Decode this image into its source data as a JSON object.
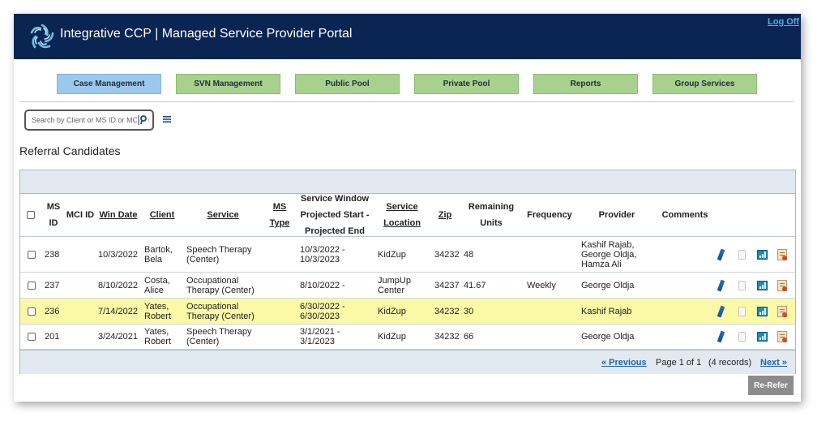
{
  "header": {
    "title": "Integrative CCP | Managed Service Provider Portal",
    "logoff_label": "Log Off"
  },
  "nav": {
    "buttons": [
      {
        "label": "Case Management",
        "active": true
      },
      {
        "label": "SVN Management",
        "active": false
      },
      {
        "label": "Public Pool",
        "active": false
      },
      {
        "label": "Private Pool",
        "active": false
      },
      {
        "label": "Reports",
        "active": false
      },
      {
        "label": "Group Services",
        "active": false
      }
    ]
  },
  "search": {
    "placeholder": "Search by Client or MS ID or MCI ID"
  },
  "page": {
    "title": "Referral Candidates"
  },
  "table": {
    "headers": {
      "ms_id": "MS ID",
      "mci_id": "MCI ID",
      "win_date": "Win Date",
      "client": "Client",
      "service": "Service",
      "ms_type": "MS Type",
      "window": "Service Window Projected Start - Projected End",
      "location": "Service Location",
      "zip": "Zip",
      "remaining": "Remaining Units",
      "frequency": "Frequency",
      "provider": "Provider",
      "comments": "Comments"
    },
    "rows": [
      {
        "ms_id": "238",
        "mci_id": "",
        "win_date": "10/3/2022",
        "client": "Bartok, Bela",
        "service": "Speech Therapy (Center)",
        "ms_type": "",
        "window": "10/3/2022 - 10/3/2023",
        "location": "KidZup",
        "zip": "34232",
        "remaining": "48",
        "frequency": "",
        "provider": "Kashif Rajab, George Oldja, Hamza Ali",
        "comments": "",
        "highlighted": false
      },
      {
        "ms_id": "237",
        "mci_id": "",
        "win_date": "8/10/2022",
        "client": "Costa, Alice",
        "service": "Occupational Therapy (Center)",
        "ms_type": "",
        "window": "8/10/2022 -",
        "location": "JumpUp Center",
        "zip": "34237",
        "remaining": "41.67",
        "frequency": "Weekly",
        "provider": "George Oldja",
        "comments": "",
        "highlighted": false
      },
      {
        "ms_id": "236",
        "mci_id": "",
        "win_date": "7/14/2022",
        "client": "Yates, Robert",
        "service": "Occupational Therapy (Center)",
        "ms_type": "",
        "window": "6/30/2022 - 6/30/2023",
        "location": "KidZup",
        "zip": "34232",
        "remaining": "30",
        "frequency": "",
        "provider": "Kashif Rajab",
        "comments": "",
        "highlighted": true
      },
      {
        "ms_id": "201",
        "mci_id": "",
        "win_date": "3/24/2021",
        "client": "Yates, Robert",
        "service": "Speech Therapy (Center)",
        "ms_type": "",
        "window": "3/1/2021 - 3/1/2023",
        "location": "KidZup",
        "zip": "34232",
        "remaining": "66",
        "frequency": "",
        "provider": "George Oldja",
        "comments": "",
        "highlighted": false
      }
    ],
    "row_icons": [
      "edit-icon",
      "document-icon",
      "chart-icon",
      "report-icon"
    ]
  },
  "pager": {
    "previous": "« Previous",
    "page_info": "Page 1 of 1",
    "records": "(4 records)",
    "next": "Next »"
  },
  "actions": {
    "rerefer_label": "Re-Refer"
  },
  "colors": {
    "header_bg": "#0a2552",
    "nav_active": "#9cc8ec",
    "nav_inactive": "#a9d18e",
    "row_highlight": "#fbf8a6",
    "link": "#1f63b5"
  }
}
